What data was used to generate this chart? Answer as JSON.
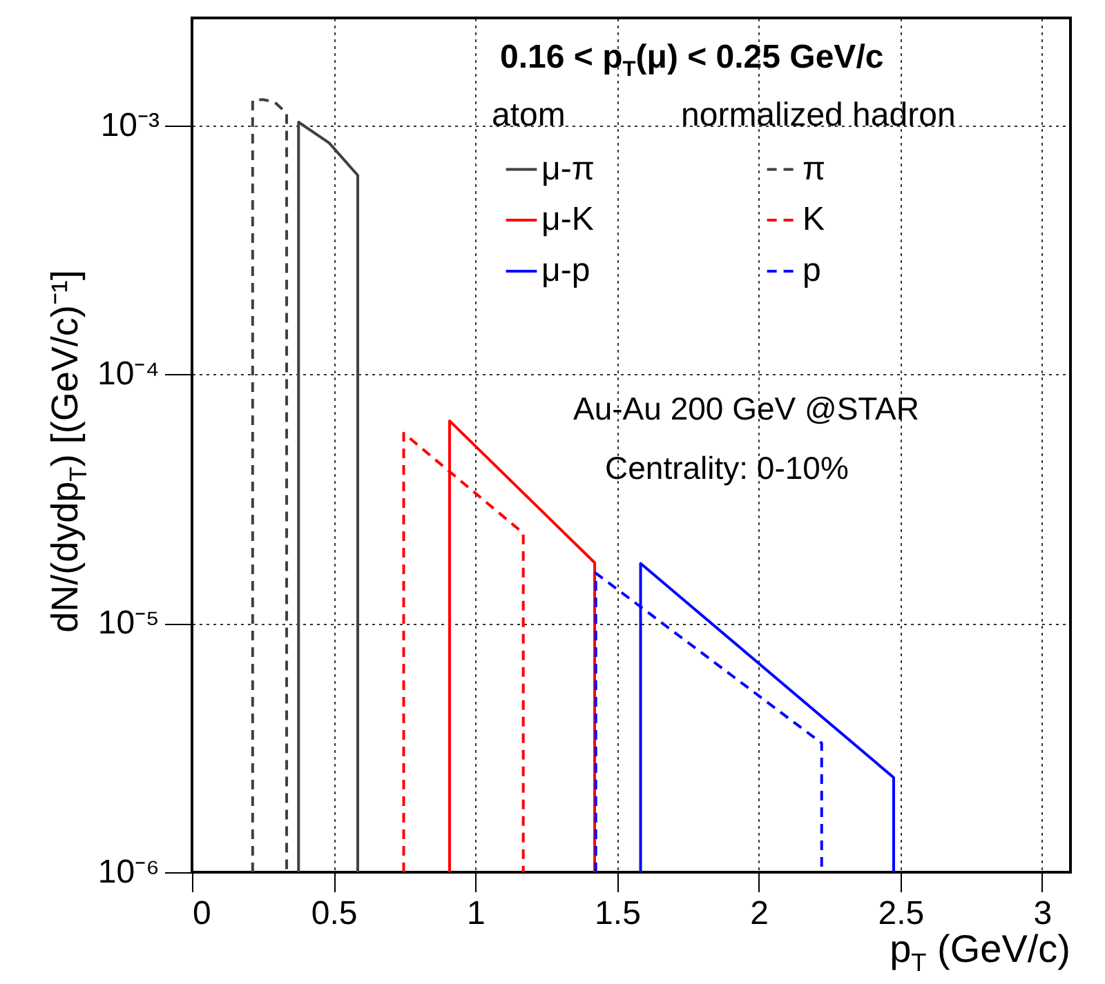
{
  "chart_data": {
    "type": "line",
    "title": "0.16 < p$_{T}$(μ) < 0.25 GeV/c",
    "xlabel": "p$_{T}$ (GeV/c)",
    "ylabel": "dN/(dydp$_{T}$) [(GeV/c)⁻¹]",
    "annotations": [
      "atom",
      "normalized hadron",
      "Au-Au 200 GeV @STAR",
      "Centrality: 0-10%"
    ],
    "xlim": [
      0,
      3.1
    ],
    "xticks": [
      0,
      0.5,
      1,
      1.5,
      2,
      2.5,
      3
    ],
    "ylim": [
      1e-06,
      0.0027
    ],
    "yticks": [
      {
        "value": 1e-06,
        "label": "10⁻⁶"
      },
      {
        "value": 1e-05,
        "label": "10⁻⁵"
      },
      {
        "value": 0.0001,
        "label": "10⁻⁴"
      },
      {
        "value": 0.001,
        "label": "10⁻³"
      }
    ],
    "log": "y",
    "grid": true,
    "legend": "top right",
    "series": [
      {
        "name": "μ-π",
        "color": "#404040",
        "line_style": "solid",
        "x": [
          0.376,
          0.376,
          0.484,
          0.585,
          0.585
        ],
        "values": [
          1e-06,
          0.00103,
          0.00085,
          0.00063,
          1e-06
        ]
      },
      {
        "name": "π",
        "color": "#404040",
        "line_style": "dashed",
        "x": [
          0.214,
          0.214,
          0.25,
          0.291,
          0.334,
          0.334
        ],
        "values": [
          1e-06,
          0.00126,
          0.00127,
          0.00124,
          0.00112,
          1e-06
        ]
      },
      {
        "name": "μ-K",
        "color": "#ff0000",
        "line_style": "solid",
        "x": [
          0.909,
          0.909,
          1.421,
          1.421
        ],
        "values": [
          1e-06,
          6.5e-05,
          1.75e-05,
          1e-06
        ]
      },
      {
        "name": "K",
        "color": "#ff0000",
        "line_style": "dashed",
        "x": [
          0.747,
          0.747,
          1.169,
          1.169
        ],
        "values": [
          1e-06,
          5.8e-05,
          2.3e-05,
          1e-06
        ]
      },
      {
        "name": "μ-p",
        "color": "#0000ff",
        "line_style": "solid",
        "x": [
          1.583,
          1.583,
          2.476,
          2.476
        ],
        "values": [
          1e-06,
          1.74e-05,
          2.4e-06,
          1e-06
        ]
      },
      {
        "name": "p",
        "color": "#0000ff",
        "line_style": "dashed",
        "x": [
          1.425,
          1.425,
          2.222,
          2.222
        ],
        "values": [
          1e-06,
          1.59e-05,
          3.3e-06,
          1e-06
        ]
      }
    ]
  }
}
